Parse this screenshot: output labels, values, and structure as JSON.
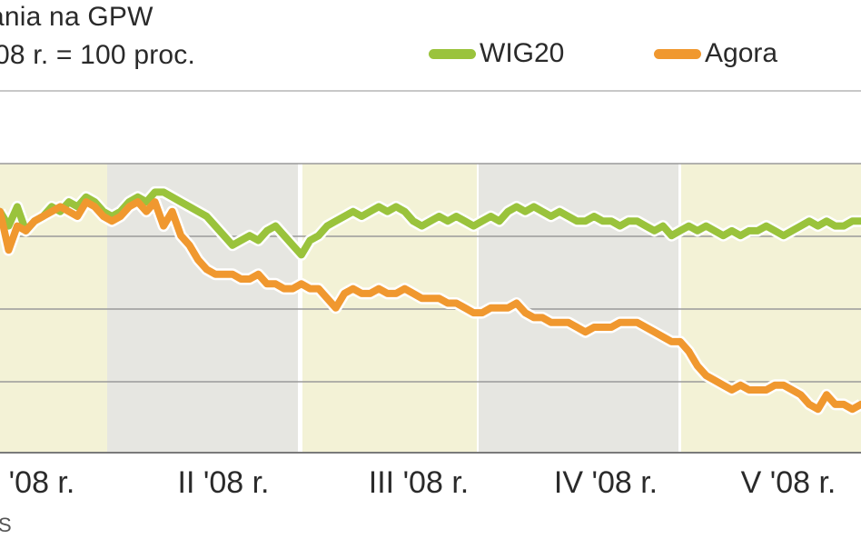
{
  "header": {
    "title": "ania na GPW",
    "subtitle": "08 r. = 100 proc.",
    "source": "S"
  },
  "chart_data": {
    "type": "line",
    "title": "ania na GPW",
    "subtitle": "08 r. = 100 proc.",
    "xlabel": "",
    "ylabel": "",
    "x_tick_labels": [
      "'08 r.",
      "II '08 r.",
      "III '08 r.",
      "IV '08 r.",
      "V '08 r."
    ],
    "grid": true,
    "legend_position": "top-right",
    "ylim": [
      50,
      125
    ],
    "series": [
      {
        "name": "WIG20",
        "color": "#9ac33c",
        "x": [
          0,
          1,
          2,
          3,
          4,
          5,
          6,
          7,
          8,
          9,
          10,
          11,
          12,
          13,
          14,
          15,
          16,
          17,
          18,
          19,
          20,
          21,
          22,
          23,
          24,
          25,
          26,
          27,
          28,
          29,
          30,
          31,
          32,
          33,
          34,
          35,
          36,
          37,
          38,
          39,
          40,
          41,
          42,
          43,
          44,
          45,
          46,
          47,
          48,
          49,
          50,
          51,
          52,
          53,
          54,
          55,
          56,
          57,
          58,
          59,
          60,
          61,
          62,
          63,
          64,
          65,
          66,
          67,
          68,
          69,
          70,
          71,
          72,
          73,
          74,
          75,
          76,
          77,
          78,
          79,
          80,
          81,
          82,
          83,
          84,
          85,
          86,
          87,
          88,
          89,
          90,
          91,
          92,
          93,
          94,
          95,
          96,
          97,
          98,
          99,
          100
        ],
        "values": [
          100,
          97,
          101,
          96,
          98,
          99,
          101,
          100,
          102,
          101,
          103,
          102,
          100,
          99,
          100,
          102,
          103,
          102,
          104,
          104,
          103,
          102,
          101,
          100,
          99,
          97,
          95,
          93,
          94,
          95,
          94,
          96,
          97,
          95,
          93,
          91,
          94,
          95,
          97,
          98,
          99,
          100,
          99,
          100,
          101,
          100,
          101,
          100,
          98,
          97,
          98,
          99,
          98,
          99,
          98,
          97,
          98,
          99,
          98,
          100,
          101,
          100,
          101,
          100,
          99,
          100,
          99,
          98,
          98,
          99,
          98,
          98,
          97,
          98,
          98,
          97,
          96,
          97,
          95,
          96,
          97,
          96,
          97,
          96,
          95,
          96,
          95,
          96,
          96,
          97,
          96,
          95,
          96,
          97,
          98,
          97,
          98,
          97,
          97,
          98,
          98
        ]
      },
      {
        "name": "Agora",
        "color": "#f0982f",
        "x": [
          0,
          1,
          2,
          3,
          4,
          5,
          6,
          7,
          8,
          9,
          10,
          11,
          12,
          13,
          14,
          15,
          16,
          17,
          18,
          19,
          20,
          21,
          22,
          23,
          24,
          25,
          26,
          27,
          28,
          29,
          30,
          31,
          32,
          33,
          34,
          35,
          36,
          37,
          38,
          39,
          40,
          41,
          42,
          43,
          44,
          45,
          46,
          47,
          48,
          49,
          50,
          51,
          52,
          53,
          54,
          55,
          56,
          57,
          58,
          59,
          60,
          61,
          62,
          63,
          64,
          65,
          66,
          67,
          68,
          69,
          70,
          71,
          72,
          73,
          74,
          75,
          76,
          77,
          78,
          79,
          80,
          81,
          82,
          83,
          84,
          85,
          86,
          87,
          88,
          89,
          90,
          91,
          92,
          93,
          94,
          95,
          96,
          97,
          98,
          99,
          100
        ],
        "values": [
          100,
          92,
          97,
          96,
          98,
          99,
          100,
          101,
          100,
          99,
          102,
          101,
          99,
          98,
          99,
          101,
          102,
          100,
          102,
          97,
          100,
          95,
          93,
          90,
          88,
          87,
          87,
          87,
          86,
          86,
          87,
          85,
          85,
          84,
          84,
          85,
          84,
          84,
          82,
          80,
          83,
          84,
          83,
          83,
          84,
          83,
          83,
          84,
          83,
          82,
          82,
          82,
          81,
          81,
          80,
          79,
          79,
          80,
          80,
          80,
          81,
          79,
          78,
          78,
          77,
          77,
          77,
          76,
          75,
          76,
          76,
          76,
          77,
          77,
          77,
          76,
          75,
          74,
          73,
          73,
          71,
          68,
          66,
          65,
          64,
          63,
          64,
          63,
          63,
          63,
          64,
          64,
          63,
          62,
          60,
          59,
          62,
          60,
          60,
          59,
          60
        ]
      }
    ]
  }
}
